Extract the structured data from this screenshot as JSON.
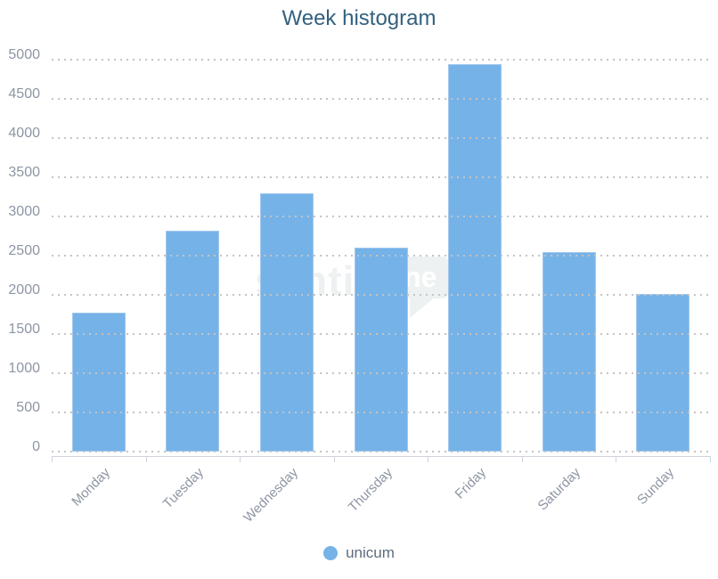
{
  "title": "Week histogram",
  "legend": {
    "label": "unicum"
  },
  "watermark": {
    "text": "senti",
    "badge": "one"
  },
  "y_axis": {
    "tick_labels": [
      "0",
      "500",
      "1000",
      "1500",
      "2000",
      "2500",
      "3000",
      "3500",
      "4000",
      "4500",
      "5000"
    ]
  },
  "colors": {
    "bar": "#75b2e8",
    "bar_border": "#a2c8ee",
    "title": "#33617f",
    "axis_labels": "#8d96a4",
    "legend_text": "#5e6d80",
    "gridline": "#c4c4c4",
    "axis_line": "#cfd4da",
    "watermark": "#eef1f2"
  },
  "chart_data": {
    "type": "bar",
    "title": "Week histogram",
    "categories": [
      "Monday",
      "Tuesday",
      "Wednesday",
      "Thursday",
      "Friday",
      "Saturday",
      "Sunday"
    ],
    "series": [
      {
        "name": "unicum",
        "values": [
          1775,
          2820,
          3300,
          2600,
          4940,
          2550,
          2010
        ]
      }
    ],
    "xlabel": "",
    "ylabel": "",
    "ylim": [
      0,
      5000
    ],
    "ytick_interval": 500,
    "grid": "horizontal-dotted",
    "legend_position": "bottom",
    "x_label_rotation": -45
  }
}
